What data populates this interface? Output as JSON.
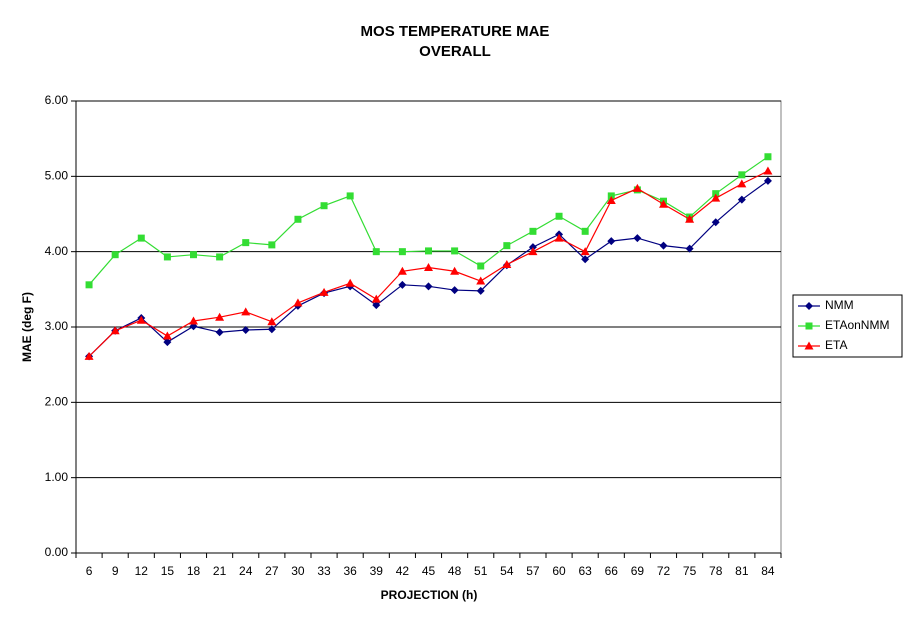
{
  "chart_data": {
    "type": "line",
    "title": [
      "MOS TEMPERATURE MAE",
      "OVERALL"
    ],
    "x_label": "PROJECTION (h)",
    "y_label": "MAE (deg F)",
    "categories": [
      "6",
      "9",
      "12",
      "15",
      "18",
      "21",
      "24",
      "27",
      "30",
      "33",
      "36",
      "39",
      "42",
      "45",
      "48",
      "51",
      "54",
      "57",
      "60",
      "63",
      "66",
      "69",
      "72",
      "75",
      "78",
      "81",
      "84"
    ],
    "ylim": [
      0,
      6
    ],
    "yticks": [
      {
        "value": 0,
        "label": "0.00"
      },
      {
        "value": 1,
        "label": "1.00"
      },
      {
        "value": 2,
        "label": "2.00"
      },
      {
        "value": 3,
        "label": "3.00"
      },
      {
        "value": 4,
        "label": "4.00"
      },
      {
        "value": 5,
        "label": "5.00"
      },
      {
        "value": 6,
        "label": "6.00"
      }
    ],
    "grid": true,
    "legend": "right",
    "series": [
      {
        "name": "NMM",
        "color": "#000080",
        "marker": "diamond",
        "values": [
          2.61,
          2.95,
          3.12,
          2.8,
          3.01,
          2.93,
          2.96,
          2.97,
          3.28,
          3.45,
          3.54,
          3.29,
          3.56,
          3.54,
          3.49,
          3.48,
          3.82,
          4.06,
          4.23,
          3.9,
          4.14,
          4.18,
          4.08,
          4.04,
          4.39,
          4.69,
          4.94
        ]
      },
      {
        "name": "ETAonNMM",
        "color": "#33dd33",
        "marker": "square",
        "values": [
          3.56,
          3.96,
          4.18,
          3.93,
          3.96,
          3.93,
          4.12,
          4.09,
          4.43,
          4.61,
          4.74,
          4.0,
          4.0,
          4.01,
          4.01,
          3.81,
          4.08,
          4.27,
          4.47,
          4.27,
          4.74,
          4.82,
          4.67,
          4.46,
          4.77,
          5.02,
          5.26
        ]
      },
      {
        "name": "ETA",
        "color": "#ff0000",
        "marker": "triangle",
        "values": [
          2.61,
          2.95,
          3.09,
          2.88,
          3.08,
          3.13,
          3.2,
          3.07,
          3.32,
          3.46,
          3.58,
          3.37,
          3.74,
          3.79,
          3.74,
          3.61,
          3.83,
          4.0,
          4.18,
          4.0,
          4.68,
          4.84,
          4.63,
          4.43,
          4.71,
          4.9,
          5.07
        ]
      }
    ]
  }
}
